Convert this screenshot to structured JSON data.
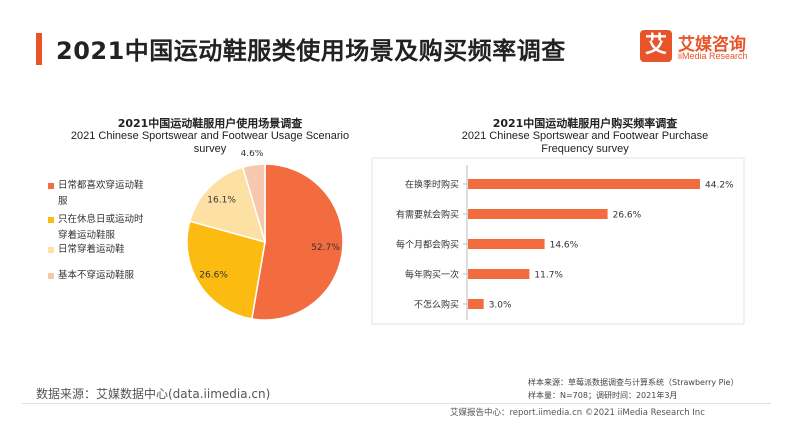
{
  "header": {
    "title": "2021中国运动鞋服类使用场景及购买频率调查",
    "logo_mark": "艾",
    "logo_cn": "艾媒咨询",
    "logo_en": "iiMedia Research"
  },
  "colors": {
    "accent": "#e8542a",
    "pie": [
      "#f26c3f",
      "#fbbb10",
      "#fde0a3",
      "#f6c8ae"
    ],
    "bar": "#f26c3f"
  },
  "left_chart": {
    "title_cn": "2021中国运动鞋服用户使用场景调查",
    "title_en_1": "2021 Chinese Sportswear and Footwear Usage Scenario",
    "title_en_2": "survey"
  },
  "right_chart": {
    "title_cn": "2021中国运动鞋服用户购买频率调查",
    "title_en_1": "2021 Chinese Sportswear and Footwear Purchase",
    "title_en_2": "Frequency survey"
  },
  "chart_data": [
    {
      "type": "pie",
      "categories": [
        "日常都喜欢穿运动鞋服",
        "只在休息日或运动时穿着运动鞋服",
        "日常穿着运动鞋",
        "基本不穿运动鞋服"
      ],
      "values": [
        52.7,
        26.6,
        16.1,
        4.6
      ],
      "data_labels": [
        "52.7%",
        "26.6%",
        "16.1%",
        "4.6%"
      ],
      "legend_placement": "left",
      "legend_lines": [
        [
          "日常都喜欢穿运动鞋",
          "服"
        ],
        [
          "只在休息日或运动时",
          "穿着运动鞋服"
        ],
        [
          "日常穿着运动鞋"
        ],
        [
          "基本不穿运动鞋服"
        ]
      ]
    },
    {
      "type": "bar",
      "orientation": "horizontal",
      "categories": [
        "在换季时购买",
        "有需要就会购买",
        "每个月都会购买",
        "每年购买一次",
        "不怎么购买"
      ],
      "values": [
        44.2,
        26.6,
        14.6,
        11.7,
        3.0
      ],
      "data_labels": [
        "44.2%",
        "26.6%",
        "14.6%",
        "11.7%",
        "3.0%"
      ],
      "xlim": [
        0,
        44.2
      ],
      "grid": false
    }
  ],
  "footer": {
    "source": "数据来源：艾媒数据中心(data.iimedia.cn)",
    "sample_source": "样本来源：草莓派数据调查与计算系统（Strawberry Pie）",
    "sample_info": "样本量：N=708；调研时间：2021年3月",
    "report_center": "艾媒报告中心：report.iimedia.cn   ©2021  iiMedia Research  Inc"
  }
}
